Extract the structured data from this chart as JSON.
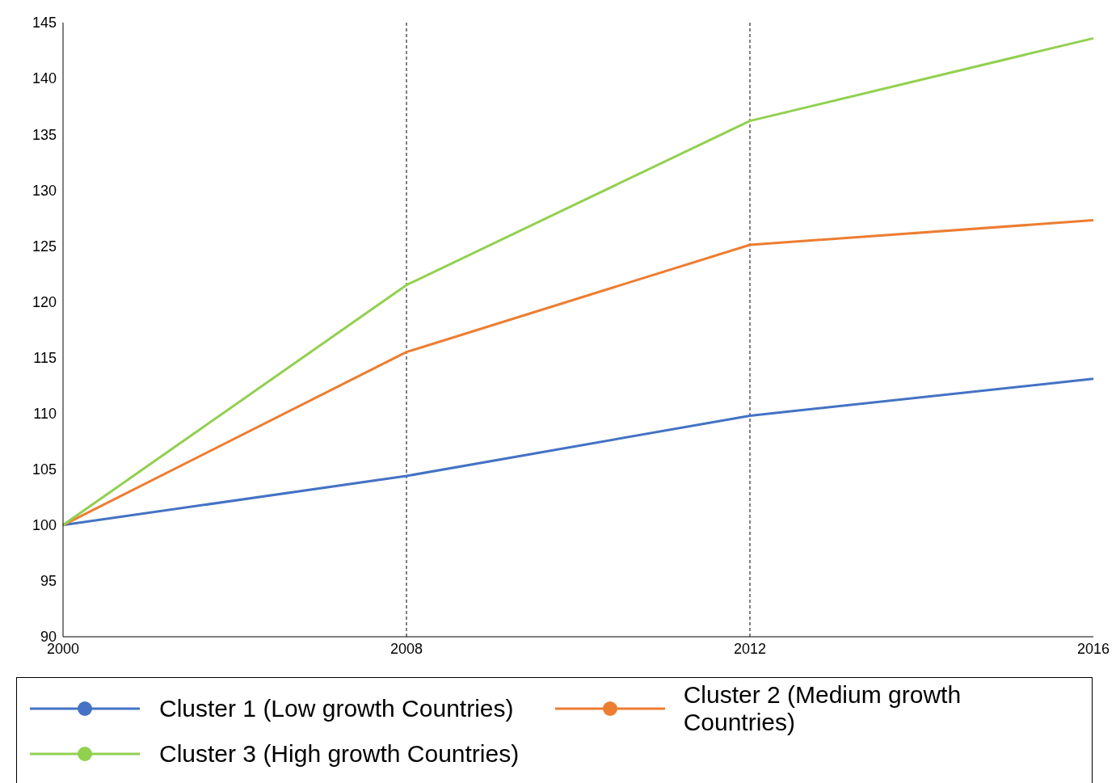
{
  "chart_data": {
    "type": "line",
    "categories": [
      "2000",
      "2008",
      "2012",
      "2016"
    ],
    "series": [
      {
        "name": "Cluster 1 (Low growth Countries)",
        "color": "#4472c4",
        "values": [
          100,
          104.4,
          109.8,
          113.1
        ]
      },
      {
        "name": "Cluster 2 (Medium growth Countries)",
        "color": "#ed7d31",
        "values": [
          100,
          115.5,
          125.1,
          127.3
        ]
      },
      {
        "name": "Cluster 3 (High growth Countries)",
        "color": "#92d050",
        "values": [
          100,
          121.5,
          136.2,
          143.6
        ]
      }
    ],
    "ylim": [
      90,
      145
    ],
    "yticks": [
      90,
      95,
      100,
      105,
      110,
      115,
      120,
      125,
      130,
      135,
      140,
      145
    ],
    "grid": false,
    "legend": "bottom",
    "marker": "none",
    "line_style": "solid",
    "ref_lines": [
      {
        "axis": "x",
        "value": "2008",
        "color": "#000000",
        "line_style": "dashed"
      },
      {
        "axis": "x",
        "value": "2012",
        "color": "#000000",
        "line_style": "dashed"
      }
    ]
  }
}
